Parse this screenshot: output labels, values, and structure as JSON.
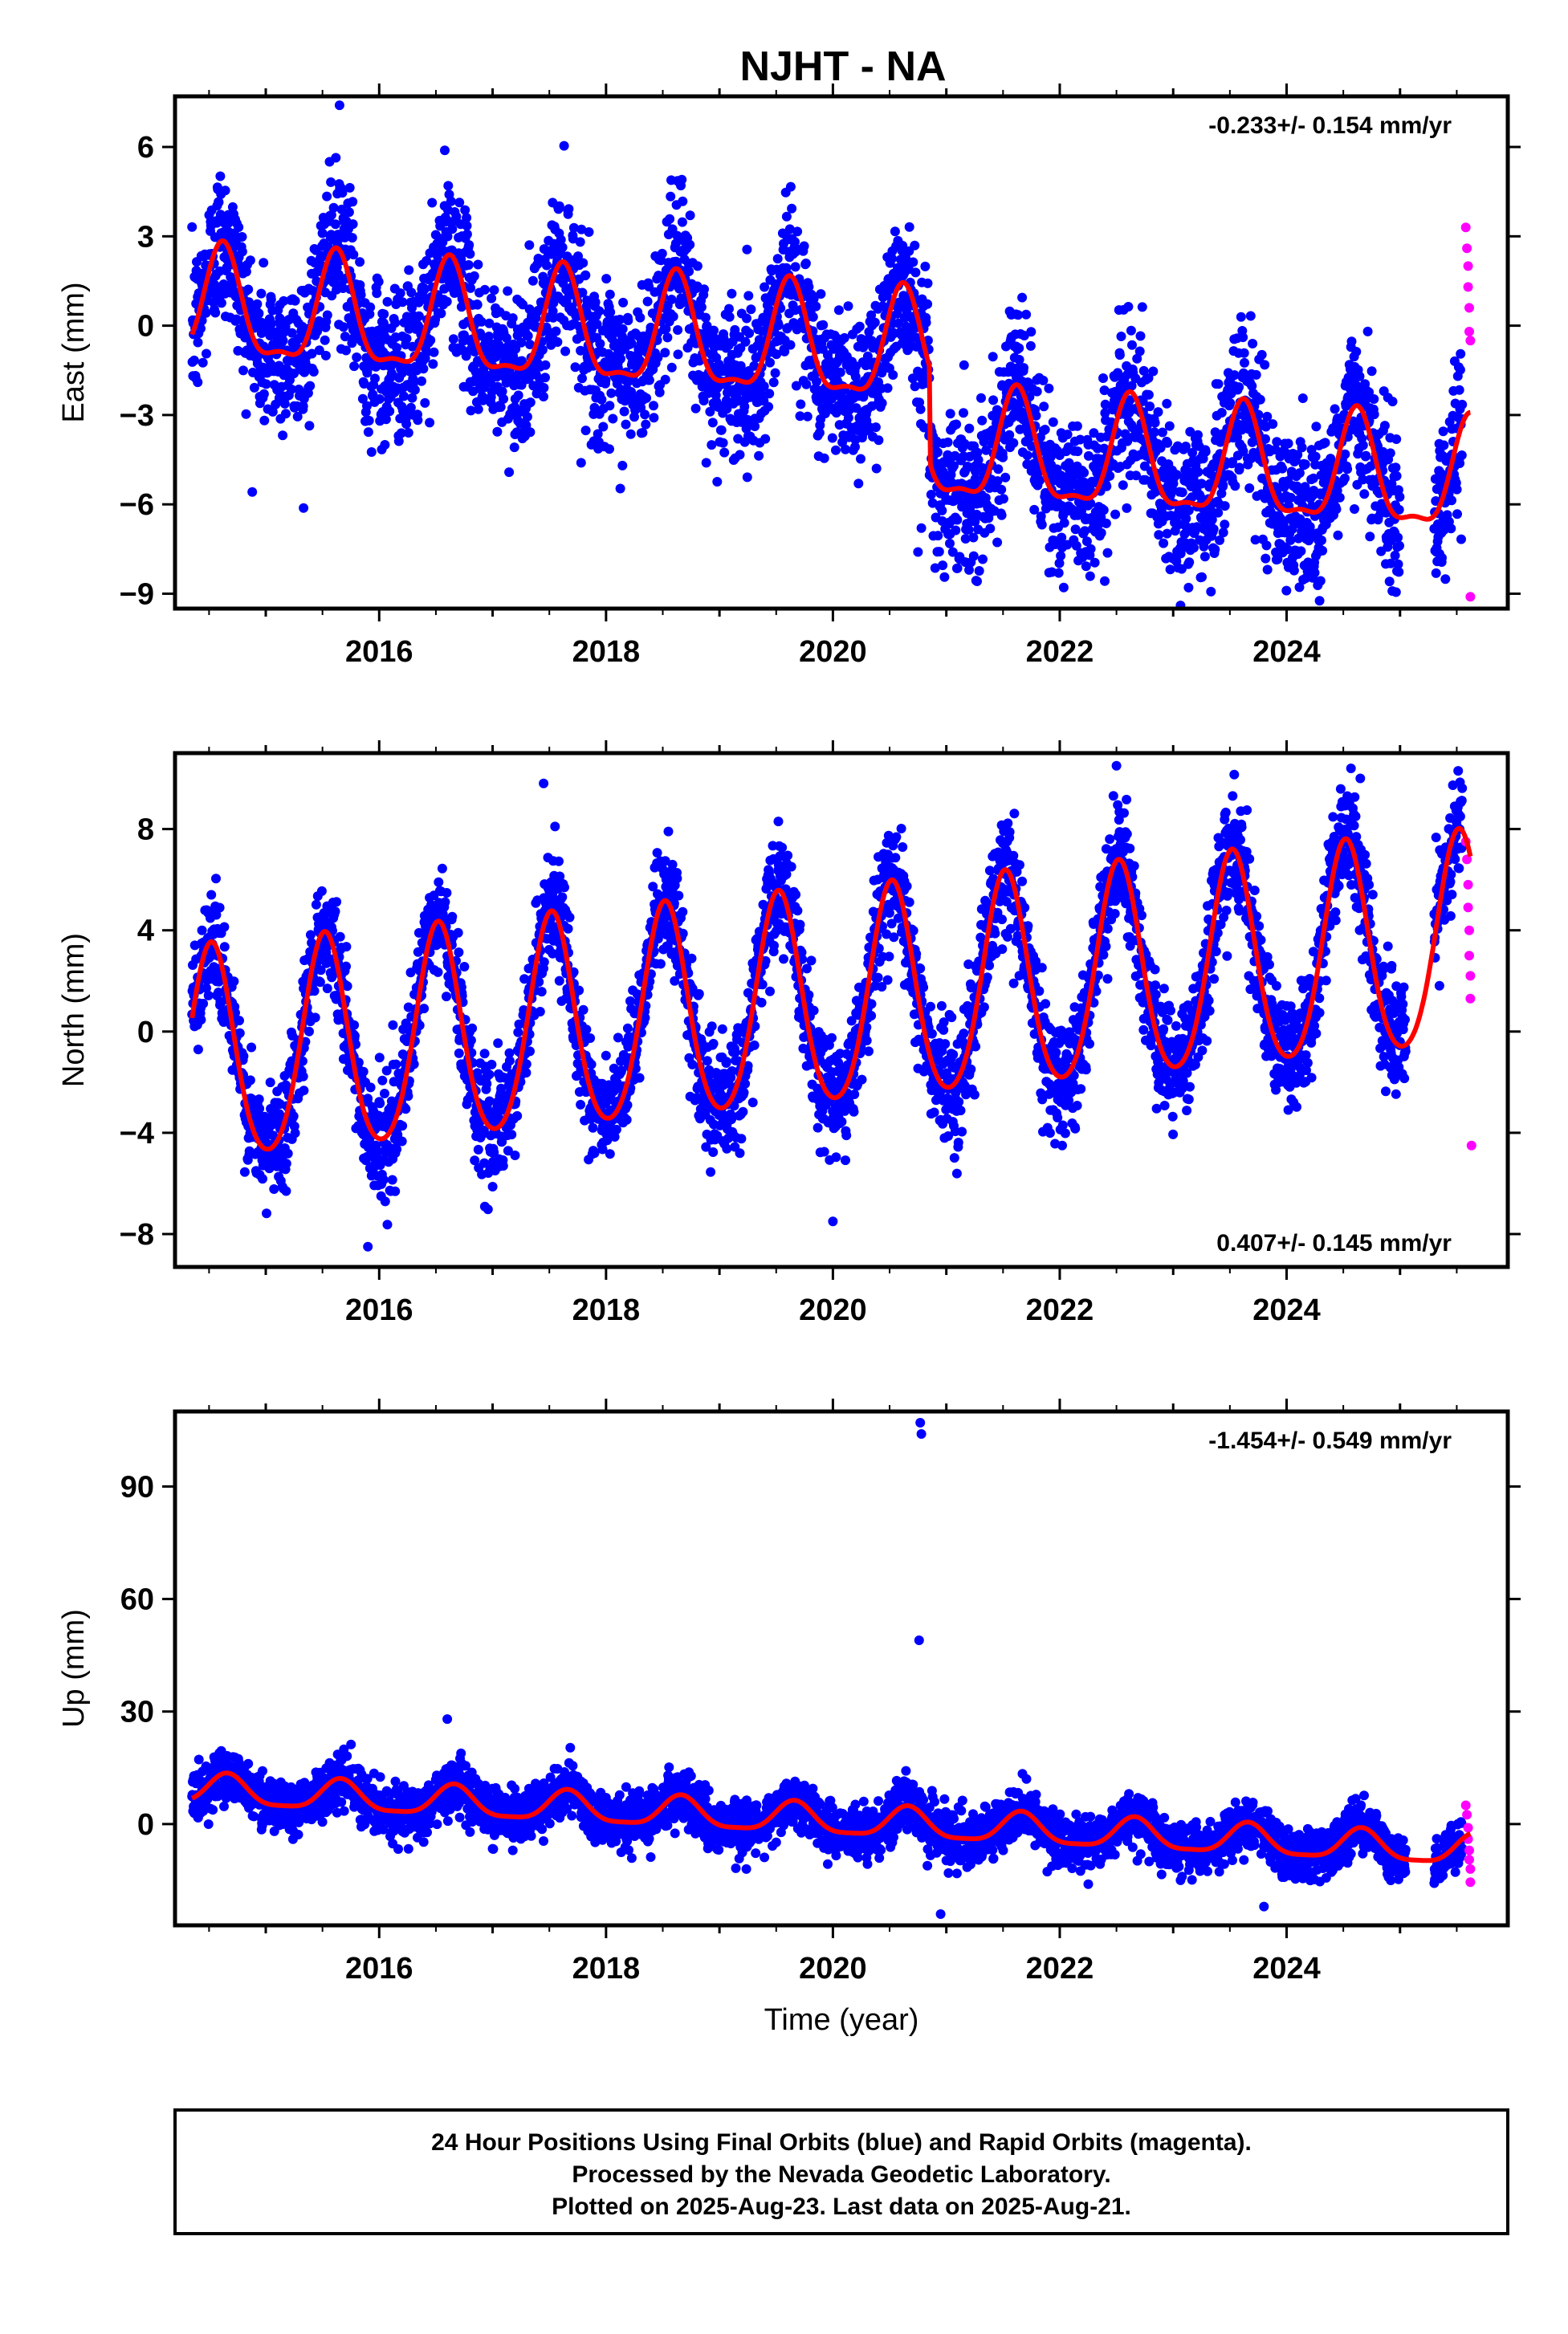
{
  "chart_data": {
    "type": "scatter",
    "title": "NJHT - NA",
    "xlabel": "Time (year)",
    "xlim": [
      2014.2,
      2025.95
    ],
    "x_ticks": [
      2016,
      2018,
      2020,
      2022,
      2024
    ],
    "series_colors": {
      "final": "#0000ff",
      "rapid": "#ff00ff",
      "model": "#ff0000"
    },
    "footer": [
      "24 Hour Positions Using Final Orbits (blue) and Rapid Orbits (magenta).",
      "Processed by the Nevada Geodetic Laboratory.",
      "Plotted on 2025-Aug-23. Last data on 2025-Aug-21."
    ],
    "panels": [
      {
        "id": "east",
        "ylabel": "East (mm)",
        "ylim": [
          -9.5,
          7.7
        ],
        "y_ticks": [
          -9,
          -6,
          -3,
          0,
          3,
          6
        ],
        "rate_text": "-0.233+/- 0.154 mm/yr",
        "rate_position": "top-right",
        "model": {
          "offset": 0.5,
          "rate": -0.233,
          "annual_amplitude": 1.8,
          "semiannual_amplitude": 0.6,
          "peak_phase": 0.62,
          "steps": [
            {
              "year": 2020.85,
              "size": -3.2
            }
          ]
        },
        "final_scatter_sd": 1.3,
        "final_range": [
          2014.35,
          2025.55
        ],
        "rapid_points": [
          [
            2025.58,
            3.3
          ],
          [
            2025.59,
            2.6
          ],
          [
            2025.6,
            2.0
          ],
          [
            2025.6,
            1.3
          ],
          [
            2025.61,
            0.6
          ],
          [
            2025.61,
            -0.2
          ],
          [
            2025.62,
            -0.5
          ],
          [
            2025.62,
            -9.1
          ]
        ],
        "outliers": [
          [
            2014.4,
            -1.9
          ],
          [
            2016.05,
            -4.0
          ],
          [
            2020.75,
            -7.6
          ],
          [
            2020.78,
            -6.8
          ],
          [
            2023.1,
            -7.0
          ],
          [
            2015.65,
            7.4
          ]
        ]
      },
      {
        "id": "north",
        "ylabel": "North (mm)",
        "ylim": [
          -9.3,
          11.0
        ],
        "y_ticks": [
          -8,
          -4,
          0,
          4,
          8
        ],
        "rate_text": "0.407+/- 0.145 mm/yr",
        "rate_position": "bottom-right",
        "model": {
          "offset": -1.2,
          "rate": 0.407,
          "annual_amplitude": 4.2,
          "semiannual_amplitude": 0.5,
          "peak_phase": 0.52,
          "steps": []
        },
        "final_scatter_sd": 1.1,
        "final_range": [
          2014.35,
          2025.55
        ],
        "rapid_points": [
          [
            2025.58,
            7.5
          ],
          [
            2025.59,
            6.8
          ],
          [
            2025.6,
            5.8
          ],
          [
            2025.6,
            4.9
          ],
          [
            2025.61,
            4.0
          ],
          [
            2025.61,
            3.0
          ],
          [
            2025.62,
            2.2
          ],
          [
            2025.62,
            1.3
          ],
          [
            2025.63,
            -4.5
          ]
        ],
        "outliers": [
          [
            2017.45,
            9.8
          ],
          [
            2015.9,
            -8.5
          ],
          [
            2020.0,
            -7.5
          ],
          [
            2022.5,
            10.5
          ],
          [
            2024.65,
            10.0
          ],
          [
            2017.55,
            8.1
          ]
        ]
      },
      {
        "id": "up",
        "ylabel": "Up (mm)",
        "ylim": [
          -27,
          110
        ],
        "y_ticks": [
          0,
          30,
          60,
          90
        ],
        "rate_text": "-1.454+/- 0.549 mm/yr",
        "rate_position": "top-right",
        "model": {
          "offset": 9.0,
          "rate": -1.454,
          "annual_amplitude": 4.0,
          "semiannual_amplitude": 1.0,
          "peak_phase": 0.66,
          "steps": []
        },
        "final_scatter_sd": 3.4,
        "final_range": [
          2014.35,
          2025.55
        ],
        "rapid_points": [
          [
            2025.58,
            5.0
          ],
          [
            2025.59,
            2.5
          ],
          [
            2025.6,
            -1.0
          ],
          [
            2025.6,
            -4.0
          ],
          [
            2025.61,
            -7.0
          ],
          [
            2025.61,
            -9.5
          ],
          [
            2025.62,
            -12.0
          ],
          [
            2025.62,
            -15.5
          ]
        ],
        "outliers": [
          [
            2020.77,
            107
          ],
          [
            2020.78,
            104
          ],
          [
            2020.76,
            49
          ],
          [
            2016.6,
            28
          ],
          [
            2020.95,
            -24
          ],
          [
            2023.8,
            -22
          ]
        ]
      }
    ]
  }
}
